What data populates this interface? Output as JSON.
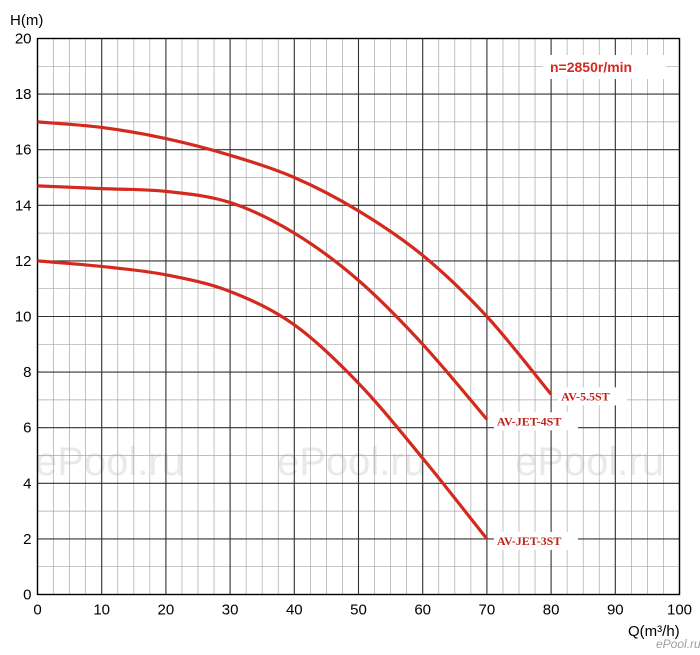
{
  "chart_data": {
    "type": "line",
    "xlabel": "Q(m³/h)",
    "ylabel": "H(m)",
    "xlim": [
      0,
      100
    ],
    "ylim": [
      0,
      20
    ],
    "x_ticks": [
      0,
      10,
      20,
      30,
      40,
      50,
      60,
      70,
      80,
      90,
      100
    ],
    "y_ticks": [
      0,
      2,
      4,
      6,
      8,
      10,
      12,
      14,
      16,
      18,
      20
    ],
    "grid": true,
    "annotation": "n=2850r/min",
    "colors": {
      "curve": "#d42a1e",
      "grid": "#8a8a8a",
      "label_bg": "#ffffff"
    },
    "series": [
      {
        "name": "AV-5.5ST",
        "x": [
          0,
          10,
          20,
          30,
          40,
          50,
          60,
          70,
          80
        ],
        "y": [
          17.0,
          16.8,
          16.4,
          15.8,
          15.0,
          13.8,
          12.2,
          10.0,
          7.2
        ]
      },
      {
        "name": "AV-JET-4ST",
        "x": [
          0,
          10,
          20,
          30,
          40,
          50,
          60,
          70
        ],
        "y": [
          14.7,
          14.6,
          14.5,
          14.1,
          13.0,
          11.3,
          9.0,
          6.3
        ]
      },
      {
        "name": "AV-JET-3ST",
        "x": [
          0,
          10,
          20,
          30,
          40,
          50,
          60,
          70
        ],
        "y": [
          12.0,
          11.8,
          11.5,
          10.9,
          9.7,
          7.6,
          4.9,
          2.0
        ]
      }
    ],
    "watermarks": [
      "ePool.ru",
      "ePool.ru",
      "ePool.ru",
      "ePool.ru"
    ]
  }
}
